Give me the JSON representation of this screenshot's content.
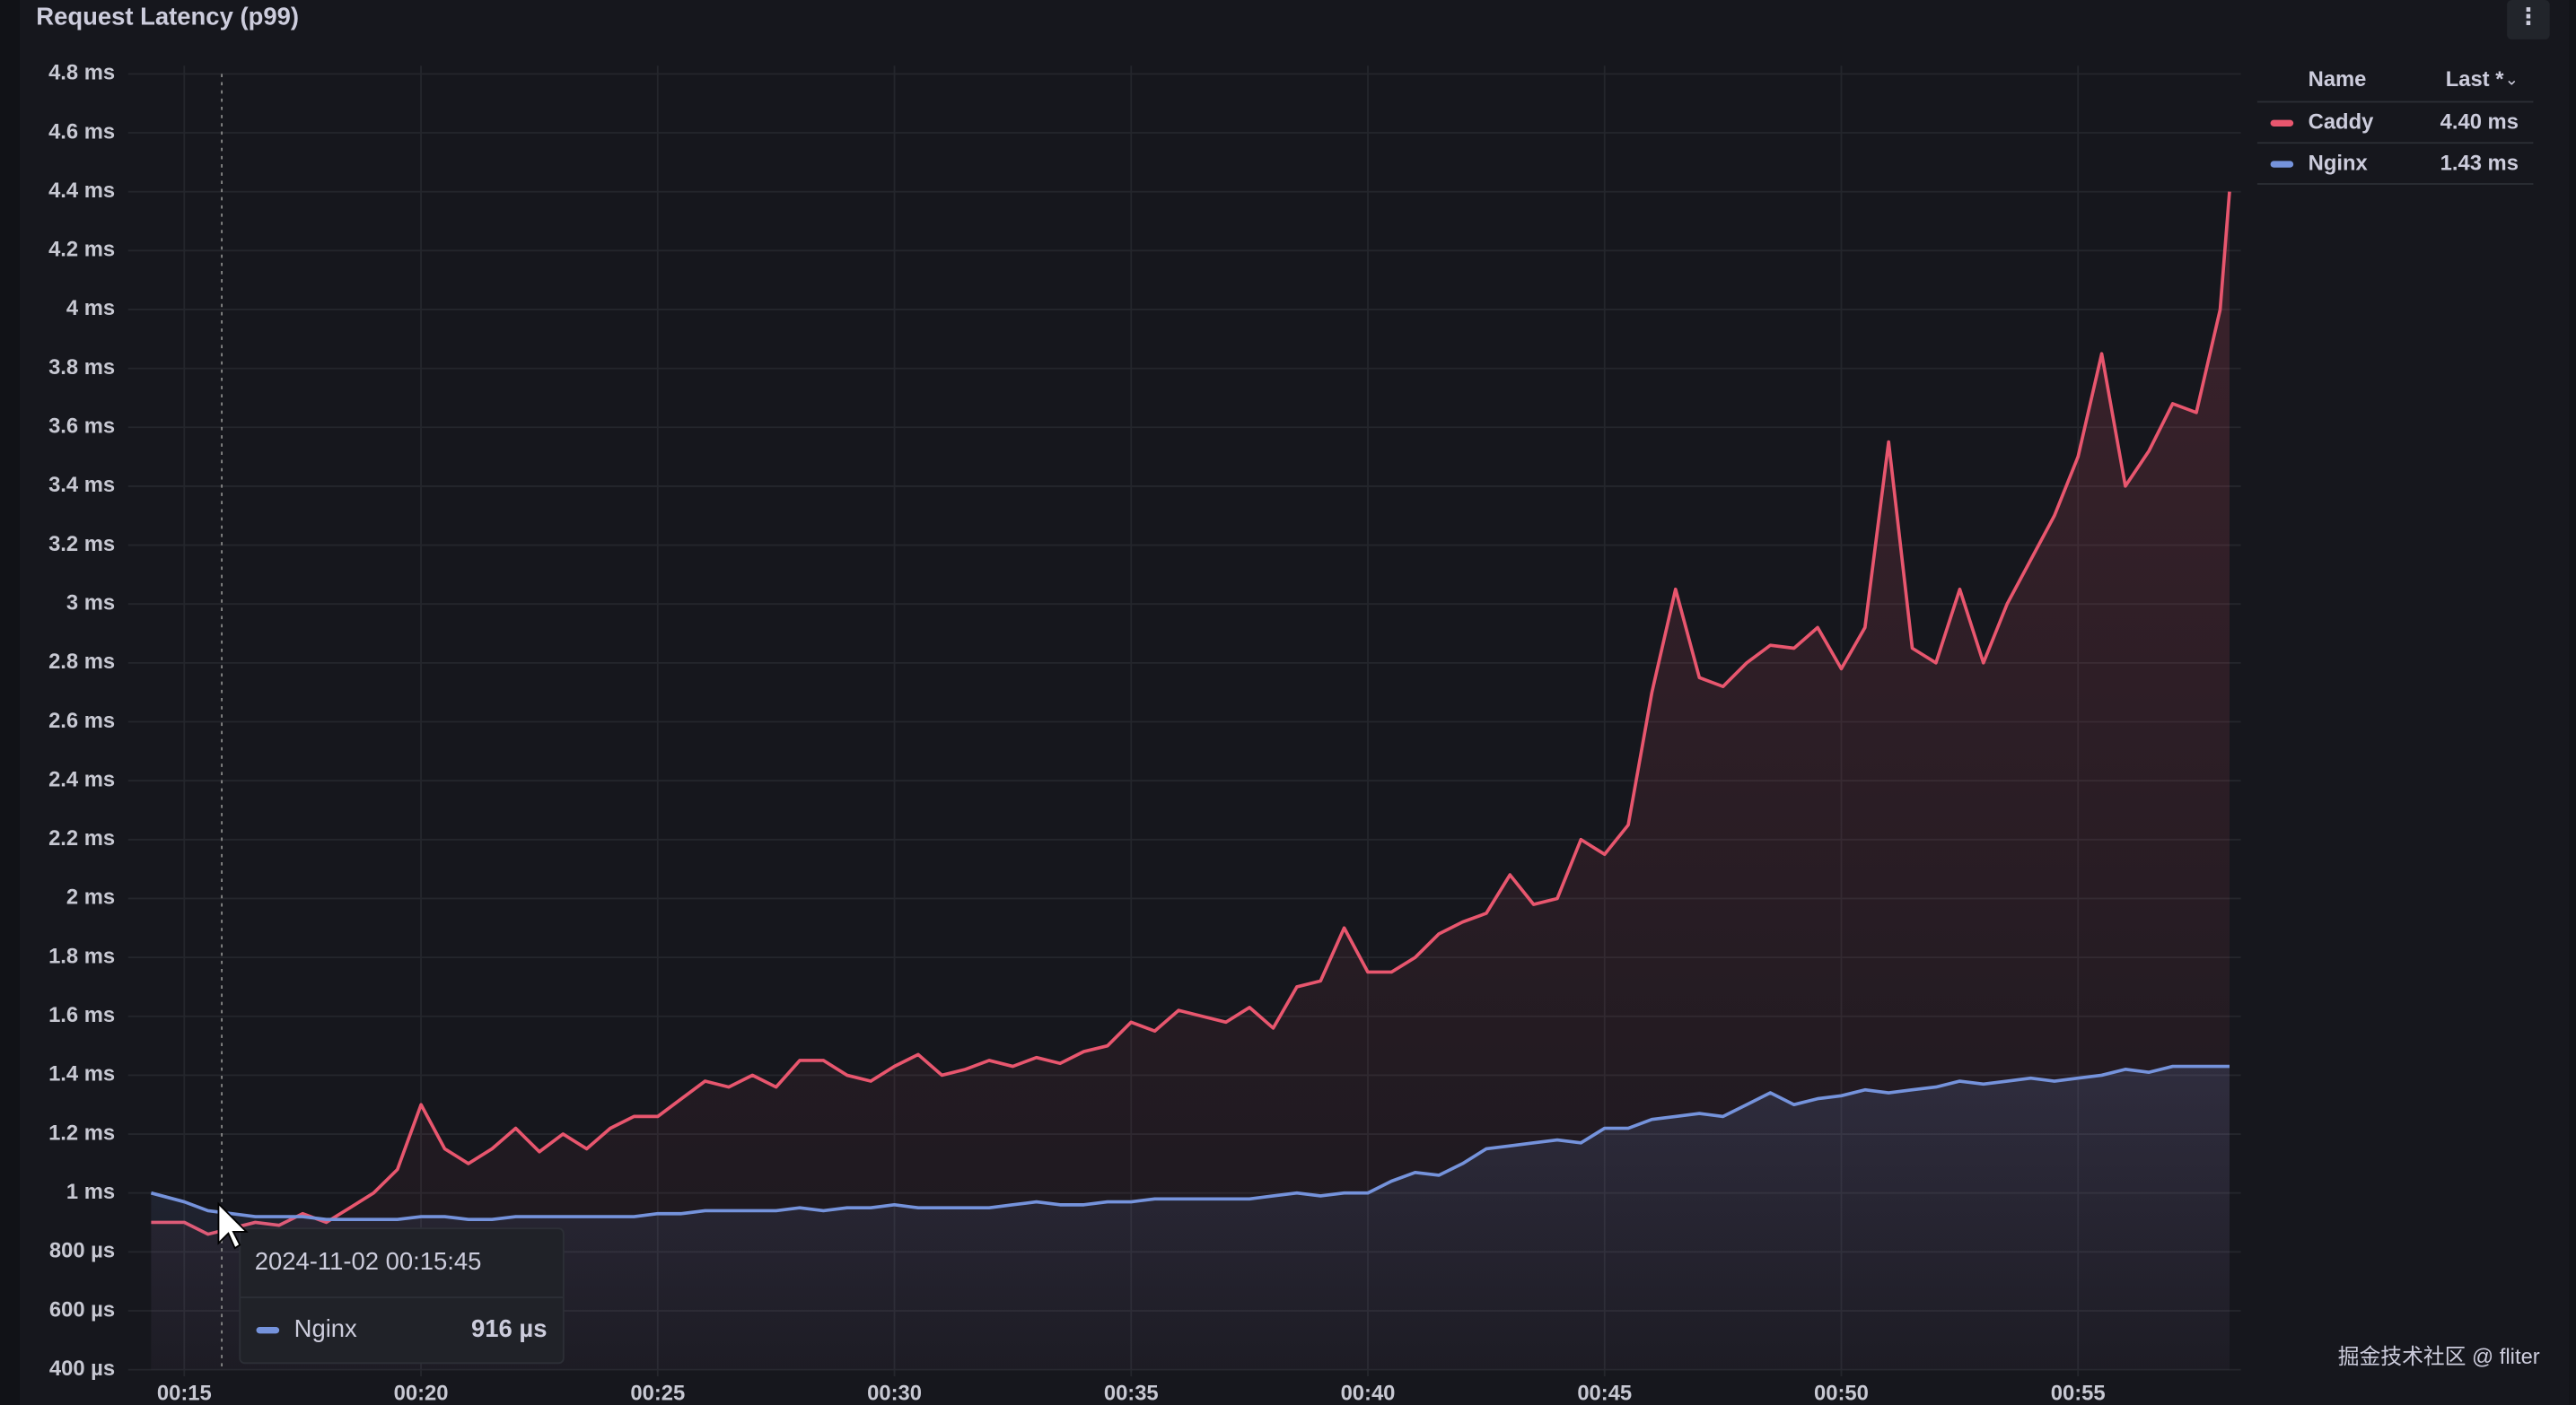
{
  "chart_data": {
    "type": "line",
    "title": "Request Latency (p99)",
    "x": [
      14.3,
      15,
      15.5,
      16,
      16.5,
      17,
      17.5,
      18,
      18.5,
      19,
      19.5,
      20,
      20.5,
      21,
      21.5,
      22,
      22.5,
      23,
      23.5,
      24,
      24.5,
      25,
      25.5,
      26,
      26.5,
      27,
      27.5,
      28,
      28.5,
      29,
      29.5,
      30,
      30.5,
      31,
      31.5,
      32,
      32.5,
      33,
      33.5,
      34,
      34.5,
      35,
      35.5,
      36,
      36.5,
      37,
      37.5,
      38,
      38.5,
      39,
      39.5,
      40,
      40.5,
      41,
      41.5,
      42,
      42.5,
      43,
      43.5,
      44,
      44.5,
      45,
      45.5,
      46,
      46.5,
      47,
      47.5,
      48,
      48.5,
      49,
      49.5,
      50,
      50.5,
      51,
      51.5,
      52,
      52.5,
      53,
      53.5,
      54,
      54.5,
      55,
      55.5,
      56,
      56.5,
      57,
      57.5,
      58,
      58.2
    ],
    "series": [
      {
        "name": "Caddy",
        "color": "#e8566e",
        "values": [
          0.9,
          0.9,
          0.86,
          0.88,
          0.9,
          0.89,
          0.93,
          0.9,
          0.95,
          1.0,
          1.08,
          1.3,
          1.15,
          1.1,
          1.15,
          1.22,
          1.14,
          1.2,
          1.15,
          1.22,
          1.26,
          1.26,
          1.32,
          1.38,
          1.36,
          1.4,
          1.36,
          1.45,
          1.45,
          1.4,
          1.38,
          1.43,
          1.47,
          1.4,
          1.42,
          1.45,
          1.43,
          1.46,
          1.44,
          1.48,
          1.5,
          1.58,
          1.55,
          1.62,
          1.6,
          1.58,
          1.63,
          1.56,
          1.7,
          1.72,
          1.9,
          1.75,
          1.75,
          1.8,
          1.88,
          1.92,
          1.95,
          2.08,
          1.98,
          2.0,
          2.2,
          2.15,
          2.25,
          2.7,
          3.05,
          2.75,
          2.72,
          2.8,
          2.86,
          2.85,
          2.92,
          2.78,
          2.92,
          3.55,
          2.85,
          2.8,
          3.05,
          2.8,
          3.0,
          3.15,
          3.3,
          3.5,
          3.85,
          3.4,
          3.52,
          3.68,
          3.65,
          4.0,
          4.4
        ]
      },
      {
        "name": "Nginx",
        "color": "#7593dc",
        "values": [
          1.0,
          0.97,
          0.94,
          0.93,
          0.92,
          0.92,
          0.92,
          0.91,
          0.91,
          0.91,
          0.91,
          0.92,
          0.92,
          0.91,
          0.91,
          0.92,
          0.92,
          0.92,
          0.92,
          0.92,
          0.92,
          0.93,
          0.93,
          0.94,
          0.94,
          0.94,
          0.94,
          0.95,
          0.94,
          0.95,
          0.95,
          0.96,
          0.95,
          0.95,
          0.95,
          0.95,
          0.96,
          0.97,
          0.96,
          0.96,
          0.97,
          0.97,
          0.98,
          0.98,
          0.98,
          0.98,
          0.98,
          0.99,
          1.0,
          0.99,
          1.0,
          1.0,
          1.04,
          1.07,
          1.06,
          1.1,
          1.15,
          1.16,
          1.17,
          1.18,
          1.17,
          1.22,
          1.22,
          1.25,
          1.26,
          1.27,
          1.26,
          1.3,
          1.34,
          1.3,
          1.32,
          1.33,
          1.35,
          1.34,
          1.35,
          1.36,
          1.38,
          1.37,
          1.38,
          1.39,
          1.38,
          1.39,
          1.4,
          1.42,
          1.41,
          1.43,
          1.43,
          1.43,
          1.43
        ]
      }
    ],
    "xlim": [
      14.3,
      58.3
    ],
    "xticks": [
      {
        "value": 15,
        "label": "00:15"
      },
      {
        "value": 20,
        "label": "00:20"
      },
      {
        "value": 25,
        "label": "00:25"
      },
      {
        "value": 30,
        "label": "00:30"
      },
      {
        "value": 35,
        "label": "00:35"
      },
      {
        "value": 40,
        "label": "00:40"
      },
      {
        "value": 45,
        "label": "00:45"
      },
      {
        "value": 50,
        "label": "00:50"
      },
      {
        "value": 55,
        "label": "00:55"
      }
    ],
    "ylim": [
      0.4,
      4.8
    ],
    "yticks": [
      {
        "value": 0.4,
        "label": "400 µs"
      },
      {
        "value": 0.6,
        "label": "600 µs"
      },
      {
        "value": 0.8,
        "label": "800 µs"
      },
      {
        "value": 1,
        "label": "1 ms"
      },
      {
        "value": 1.2,
        "label": "1.2 ms"
      },
      {
        "value": 1.4,
        "label": "1.4 ms"
      },
      {
        "value": 1.6,
        "label": "1.6 ms"
      },
      {
        "value": 1.8,
        "label": "1.8 ms"
      },
      {
        "value": 2,
        "label": "2 ms"
      },
      {
        "value": 2.2,
        "label": "2.2 ms"
      },
      {
        "value": 2.4,
        "label": "2.4 ms"
      },
      {
        "value": 2.6,
        "label": "2.6 ms"
      },
      {
        "value": 2.8,
        "label": "2.8 ms"
      },
      {
        "value": 3,
        "label": "3 ms"
      },
      {
        "value": 3.2,
        "label": "3.2 ms"
      },
      {
        "value": 3.4,
        "label": "3.4 ms"
      },
      {
        "value": 3.6,
        "label": "3.6 ms"
      },
      {
        "value": 3.8,
        "label": "3.8 ms"
      },
      {
        "value": 4,
        "label": "4 ms"
      },
      {
        "value": 4.2,
        "label": "4.2 ms"
      },
      {
        "value": 4.4,
        "label": "4.4 ms"
      },
      {
        "value": 4.6,
        "label": "4.6 ms"
      },
      {
        "value": 4.8,
        "label": "4.8 ms"
      }
    ],
    "grid": true,
    "legend": {
      "name_header": "Name",
      "last_header": "Last *",
      "last": [
        "4.40 ms",
        "1.43 ms"
      ]
    },
    "tooltip": {
      "time": "2024-11-02 00:15:45",
      "value": "916 µs"
    }
  },
  "watermark": "掘金技术社区 @ fliter"
}
